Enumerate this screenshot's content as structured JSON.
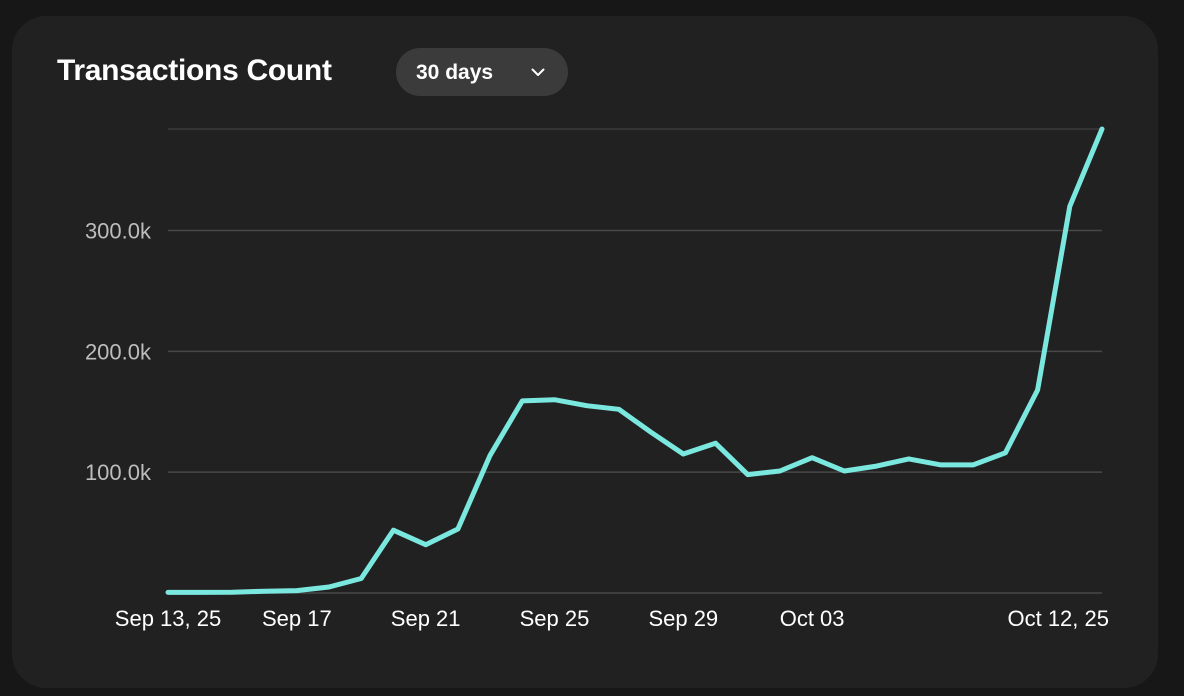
{
  "header": {
    "title": "Transactions Count",
    "range_label": "30 days"
  },
  "colors": {
    "background": "#212121",
    "line": "#7be8df",
    "grid": "#484848",
    "tick_text": "#bdbdbd",
    "x_tick_text": "#ffffff"
  },
  "chart_data": {
    "type": "line",
    "title": "Transactions Count",
    "xlabel": "",
    "ylabel": "",
    "x": [
      "2025-09-13",
      "2025-09-14",
      "2025-09-15",
      "2025-09-16",
      "2025-09-17",
      "2025-09-18",
      "2025-09-19",
      "2025-09-20",
      "2025-09-21",
      "2025-09-22",
      "2025-09-23",
      "2025-09-24",
      "2025-09-25",
      "2025-09-26",
      "2025-09-27",
      "2025-09-28",
      "2025-09-29",
      "2025-09-30",
      "2025-10-01",
      "2025-10-02",
      "2025-10-03",
      "2025-10-04",
      "2025-10-05",
      "2025-10-06",
      "2025-10-07",
      "2025-10-08",
      "2025-10-09",
      "2025-10-10",
      "2025-10-11",
      "2025-10-12"
    ],
    "series": [
      {
        "values": [
          500,
          500,
          600,
          1500,
          2000,
          5000,
          12000,
          52000,
          40000,
          53000,
          114000,
          159000,
          160000,
          155000,
          152000,
          133000,
          115000,
          124000,
          98000,
          101000,
          112000,
          101000,
          105000,
          111000,
          106000,
          106000,
          116000,
          168000,
          320000,
          384000
        ]
      }
    ],
    "ylim": [
      0,
      384000
    ],
    "y_ticks": [
      100000,
      200000,
      300000
    ],
    "y_tick_labels": [
      "100.0k",
      "200.0k",
      "300.0k"
    ],
    "x_tick_labels": [
      {
        "date": "2025-09-13",
        "label": "Sep 13, 25"
      },
      {
        "date": "2025-09-17",
        "label": "Sep 17"
      },
      {
        "date": "2025-09-21",
        "label": "Sep 21"
      },
      {
        "date": "2025-09-25",
        "label": "Sep 25"
      },
      {
        "date": "2025-09-29",
        "label": "Sep 29"
      },
      {
        "date": "2025-10-03",
        "label": "Oct 03"
      },
      {
        "date": "2025-10-12",
        "label": "Oct 12, 25"
      }
    ],
    "grid": true,
    "legend": "none"
  }
}
